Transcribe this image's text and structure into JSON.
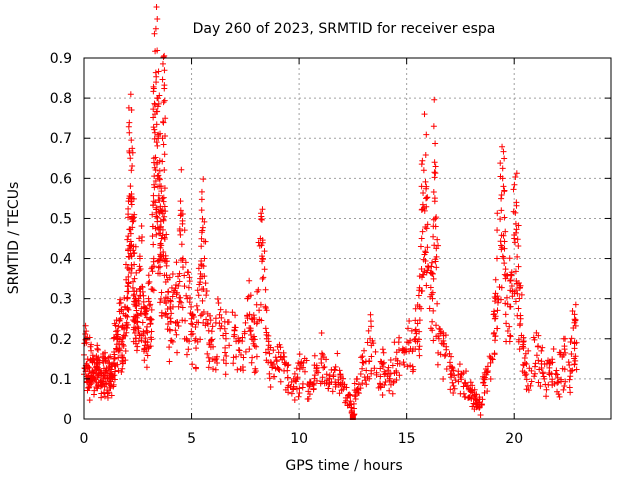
{
  "chart_data": {
    "type": "scatter",
    "title": "Day 260 of 2023, SRMTID for receiver espa",
    "xlabel": "GPS time / hours",
    "ylabel": "SRMTID / TECUs",
    "xlim": [
      0,
      24.5
    ],
    "ylim": [
      0,
      0.9
    ],
    "xticks": [
      0,
      5,
      10,
      15,
      20
    ],
    "xtick_labels": [
      "0",
      "5",
      "10",
      "15",
      "20"
    ],
    "yticks": [
      0,
      0.1,
      0.2,
      0.3,
      0.4,
      0.5,
      0.6,
      0.7,
      0.8,
      0.9
    ],
    "ytick_labels": [
      "0",
      "0.1",
      "0.2",
      "0.3",
      "0.4",
      "0.5",
      "0.6",
      "0.7",
      "0.8",
      "0.9"
    ],
    "grid": true,
    "marker": "+",
    "color": "#ff0000",
    "series": [
      {
        "name": "SRMTID",
        "points": [
          [
            0.0,
            0.16
          ],
          [
            0.1,
            0.2
          ],
          [
            0.2,
            0.13
          ],
          [
            0.25,
            0.08
          ],
          [
            0.3,
            0.18
          ],
          [
            0.4,
            0.12
          ],
          [
            0.5,
            0.1
          ],
          [
            0.6,
            0.15
          ],
          [
            0.7,
            0.11
          ],
          [
            0.8,
            0.09
          ],
          [
            0.9,
            0.14
          ],
          [
            1.0,
            0.12
          ],
          [
            1.1,
            0.1
          ],
          [
            1.2,
            0.13
          ],
          [
            1.3,
            0.11
          ],
          [
            1.4,
            0.15
          ],
          [
            1.5,
            0.21
          ],
          [
            1.6,
            0.17
          ],
          [
            1.7,
            0.25
          ],
          [
            1.8,
            0.2
          ],
          [
            1.9,
            0.28
          ],
          [
            2.0,
            0.3
          ],
          [
            2.05,
            0.42
          ],
          [
            2.1,
            0.55
          ],
          [
            2.15,
            0.65
          ],
          [
            2.2,
            0.62
          ],
          [
            2.25,
            0.5
          ],
          [
            2.3,
            0.43
          ],
          [
            2.35,
            0.35
          ],
          [
            2.4,
            0.3
          ],
          [
            2.5,
            0.26
          ],
          [
            2.6,
            0.4
          ],
          [
            2.7,
            0.33
          ],
          [
            2.8,
            0.28
          ],
          [
            2.9,
            0.22
          ],
          [
            3.0,
            0.3
          ],
          [
            3.1,
            0.25
          ],
          [
            3.2,
            0.48
          ],
          [
            3.25,
            0.65
          ],
          [
            3.3,
            0.76
          ],
          [
            3.35,
            0.84
          ],
          [
            3.4,
            0.8
          ],
          [
            3.45,
            0.7
          ],
          [
            3.5,
            0.6
          ],
          [
            3.55,
            0.53
          ],
          [
            3.6,
            0.45
          ],
          [
            3.65,
            0.55
          ],
          [
            3.7,
            0.79
          ],
          [
            3.75,
            0.66
          ],
          [
            3.8,
            0.4
          ],
          [
            3.9,
            0.3
          ],
          [
            4.0,
            0.22
          ],
          [
            4.2,
            0.32
          ],
          [
            4.4,
            0.28
          ],
          [
            4.5,
            0.52
          ],
          [
            4.6,
            0.4
          ],
          [
            4.8,
            0.3
          ],
          [
            5.0,
            0.25
          ],
          [
            5.2,
            0.2
          ],
          [
            5.4,
            0.35
          ],
          [
            5.5,
            0.47
          ],
          [
            5.6,
            0.4
          ],
          [
            5.8,
            0.22
          ],
          [
            6.0,
            0.18
          ],
          [
            6.3,
            0.26
          ],
          [
            6.6,
            0.2
          ],
          [
            7.0,
            0.22
          ],
          [
            7.3,
            0.16
          ],
          [
            7.6,
            0.3
          ],
          [
            7.8,
            0.25
          ],
          [
            8.0,
            0.18
          ],
          [
            8.2,
            0.45
          ],
          [
            8.3,
            0.4
          ],
          [
            8.5,
            0.2
          ],
          [
            8.7,
            0.14
          ],
          [
            9.0,
            0.18
          ],
          [
            9.3,
            0.12
          ],
          [
            9.6,
            0.08
          ],
          [
            9.9,
            0.1
          ],
          [
            10.2,
            0.14
          ],
          [
            10.5,
            0.09
          ],
          [
            10.8,
            0.12
          ],
          [
            11.1,
            0.16
          ],
          [
            11.4,
            0.1
          ],
          [
            11.7,
            0.13
          ],
          [
            12.0,
            0.09
          ],
          [
            12.3,
            0.06
          ],
          [
            12.5,
            0.01
          ],
          [
            12.7,
            0.1
          ],
          [
            13.0,
            0.14
          ],
          [
            13.3,
            0.2
          ],
          [
            13.6,
            0.11
          ],
          [
            13.9,
            0.13
          ],
          [
            14.2,
            0.1
          ],
          [
            14.5,
            0.15
          ],
          [
            14.8,
            0.17
          ],
          [
            15.1,
            0.19
          ],
          [
            15.4,
            0.22
          ],
          [
            15.6,
            0.28
          ],
          [
            15.7,
            0.45
          ],
          [
            15.8,
            0.62
          ],
          [
            15.9,
            0.55
          ],
          [
            16.0,
            0.38
          ],
          [
            16.2,
            0.3
          ],
          [
            16.3,
            0.64
          ],
          [
            16.35,
            0.48
          ],
          [
            16.5,
            0.2
          ],
          [
            16.8,
            0.16
          ],
          [
            17.1,
            0.13
          ],
          [
            17.4,
            0.11
          ],
          [
            17.7,
            0.09
          ],
          [
            18.0,
            0.07
          ],
          [
            18.2,
            0.05
          ],
          [
            18.4,
            0.03
          ],
          [
            18.6,
            0.1
          ],
          [
            18.9,
            0.14
          ],
          [
            19.1,
            0.25
          ],
          [
            19.2,
            0.4
          ],
          [
            19.4,
            0.52
          ],
          [
            19.5,
            0.58
          ],
          [
            19.6,
            0.35
          ],
          [
            19.8,
            0.28
          ],
          [
            20.0,
            0.45
          ],
          [
            20.1,
            0.54
          ],
          [
            20.2,
            0.38
          ],
          [
            20.3,
            0.25
          ],
          [
            20.5,
            0.14
          ],
          [
            20.8,
            0.12
          ],
          [
            21.1,
            0.18
          ],
          [
            21.4,
            0.1
          ],
          [
            21.7,
            0.14
          ],
          [
            22.0,
            0.09
          ],
          [
            22.3,
            0.16
          ],
          [
            22.6,
            0.12
          ],
          [
            22.8,
            0.24
          ],
          [
            22.9,
            0.19
          ]
        ]
      }
    ],
    "overlay_points": [
      [
        12.5,
        0.005
      ]
    ]
  }
}
